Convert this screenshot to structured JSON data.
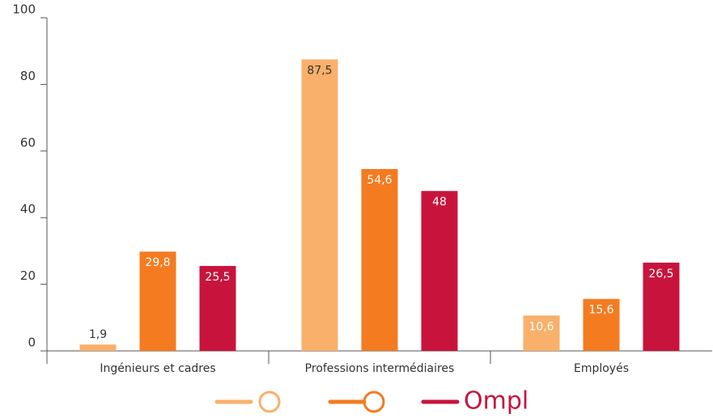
{
  "chart_data": {
    "type": "bar",
    "categories": [
      "Ingénieurs et cadres",
      "Professions intermédiaires",
      "Employés"
    ],
    "series": [
      {
        "color": "#f9b06a",
        "values": [
          1.9,
          87.5,
          10.6
        ],
        "value_labels": [
          "1,9",
          "87,5",
          "10,6"
        ]
      },
      {
        "color": "#f47b20",
        "values": [
          29.8,
          54.6,
          15.6
        ],
        "value_labels": [
          "29,8",
          "54,6",
          "15,6"
        ]
      },
      {
        "name": "Ompl",
        "color": "#c8143c",
        "values": [
          25.5,
          48,
          26.5
        ],
        "value_labels": [
          "25,5",
          "48",
          "26,5"
        ]
      }
    ],
    "ylim": [
      0,
      100
    ],
    "yticks": [
      0,
      20,
      40,
      60,
      80,
      100
    ],
    "grid": false
  }
}
